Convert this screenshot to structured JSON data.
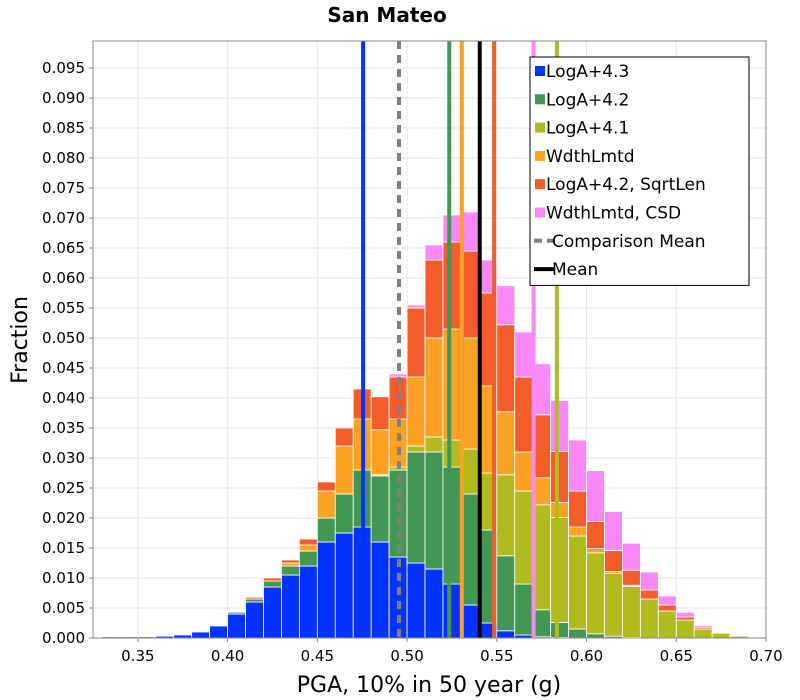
{
  "chart_data": {
    "type": "bar",
    "stacked": true,
    "title": "San Mateo",
    "xlabel": "PGA, 10% in 50 year (g)",
    "ylabel": "Fraction",
    "xlim": [
      0.325,
      0.7
    ],
    "ylim": [
      0.0,
      0.0995
    ],
    "xticks": [
      "0.35",
      "0.40",
      "0.45",
      "0.50",
      "0.55",
      "0.60",
      "0.65",
      "0.70"
    ],
    "yticks": [
      "0.000",
      "0.005",
      "0.010",
      "0.015",
      "0.020",
      "0.025",
      "0.030",
      "0.035",
      "0.040",
      "0.045",
      "0.050",
      "0.055",
      "0.060",
      "0.065",
      "0.070",
      "0.075",
      "0.080",
      "0.085",
      "0.090",
      "0.095"
    ],
    "grid": true,
    "legend_position": "top-right",
    "bin_width": 0.01,
    "bin_centers": [
      0.335,
      0.345,
      0.355,
      0.365,
      0.375,
      0.385,
      0.395,
      0.405,
      0.415,
      0.425,
      0.435,
      0.445,
      0.455,
      0.465,
      0.475,
      0.485,
      0.495,
      0.505,
      0.515,
      0.525,
      0.535,
      0.545,
      0.555,
      0.565,
      0.575,
      0.585,
      0.595,
      0.605,
      0.615,
      0.625,
      0.635,
      0.645,
      0.655,
      0.665,
      0.675,
      0.685
    ],
    "series": [
      {
        "name": "LogA+4.3",
        "color": "#0433ff",
        "values": [
          0.0002,
          0.0002,
          0.0002,
          0.0003,
          0.0005,
          0.001,
          0.002,
          0.004,
          0.006,
          0.0085,
          0.0105,
          0.012,
          0.016,
          0.0175,
          0.0185,
          0.016,
          0.0135,
          0.0125,
          0.0115,
          0.009,
          0.0055,
          0.0025,
          0.0012,
          0.0005,
          0.0002,
          0.0001,
          0.0,
          0.0,
          0.0,
          0.0,
          0.0,
          0.0,
          0.0,
          0.0,
          0.0,
          0.0
        ]
      },
      {
        "name": "LogA+4.2",
        "color": "#429852",
        "values": [
          0.0,
          0.0,
          0.0,
          0.0,
          0.0,
          0.0,
          0.0,
          0.0003,
          0.0005,
          0.001,
          0.0015,
          0.0025,
          0.004,
          0.0065,
          0.0095,
          0.011,
          0.0145,
          0.0185,
          0.0195,
          0.0195,
          0.0185,
          0.0155,
          0.0125,
          0.0085,
          0.0045,
          0.0025,
          0.0015,
          0.0007,
          0.0003,
          0.0001,
          0.0,
          0.0,
          0.0,
          0.0,
          0.0,
          0.0
        ]
      },
      {
        "name": "LogA+4.1",
        "color": "#b2bb1e",
        "values": [
          0.0,
          0.0,
          0.0,
          0.0,
          0.0,
          0.0,
          0.0,
          0.0,
          0.0,
          0.0,
          0.0,
          0.0,
          0.0,
          0.0,
          0.0,
          0.0002,
          0.0005,
          0.001,
          0.0025,
          0.0045,
          0.0075,
          0.0095,
          0.0135,
          0.0155,
          0.0175,
          0.0175,
          0.0155,
          0.0135,
          0.0105,
          0.0085,
          0.0065,
          0.0045,
          0.003,
          0.0015,
          0.0008,
          0.0003
        ]
      },
      {
        "name": "WdthLmtd",
        "color": "#fba222",
        "values": [
          0.0,
          0.0,
          0.0,
          0.0,
          0.0,
          0.0,
          0.0,
          0.0,
          0.0,
          0.0,
          0.0005,
          0.001,
          0.0045,
          0.008,
          0.0085,
          0.0075,
          0.008,
          0.0115,
          0.0165,
          0.0185,
          0.0185,
          0.0145,
          0.0105,
          0.0065,
          0.0045,
          0.0025,
          0.0015,
          0.0007,
          0.0003,
          0.0002,
          0.0,
          0.0,
          0.0,
          0.0,
          0.0,
          0.0
        ]
      },
      {
        "name": "LogA+4.2, SqrtLen",
        "color": "#f45c29",
        "values": [
          0.0,
          0.0,
          0.0,
          0.0,
          0.0,
          0.0,
          0.0,
          0.0,
          0.0003,
          0.0005,
          0.0005,
          0.001,
          0.0015,
          0.003,
          0.005,
          0.0055,
          0.007,
          0.0115,
          0.013,
          0.0145,
          0.0145,
          0.0155,
          0.0145,
          0.0125,
          0.0105,
          0.0085,
          0.006,
          0.0045,
          0.0035,
          0.0025,
          0.0015,
          0.001,
          0.0005,
          0.0003,
          0.0001,
          0.0
        ]
      },
      {
        "name": "WdthLmtd, CSD",
        "color": "#fb88f8",
        "values": [
          0.0,
          0.0,
          0.0,
          0.0,
          0.0,
          0.0,
          0.0,
          0.0,
          0.0,
          0.0,
          0.0,
          0.0,
          0.0,
          0.0,
          0.0,
          0.0,
          0.0005,
          0.0005,
          0.0025,
          0.0045,
          0.0065,
          0.0055,
          0.0065,
          0.0075,
          0.0085,
          0.0085,
          0.0085,
          0.0085,
          0.0065,
          0.0045,
          0.003,
          0.0015,
          0.0008,
          0.0003,
          0.0001,
          0.0
        ]
      }
    ],
    "vertical_lines": [
      {
        "name": "LogA+4.3",
        "x": 0.4755,
        "color": "#0433ff",
        "style": "solid"
      },
      {
        "name": "Comparison Mean",
        "x": 0.4955,
        "color": "#808080",
        "style": "dashed"
      },
      {
        "name": "LogA+4.2",
        "x": 0.5235,
        "color": "#429852",
        "style": "solid"
      },
      {
        "name": "LogA+4.1",
        "x": 0.5305,
        "color": "#fba222",
        "style": "solid"
      },
      {
        "name": "Mean",
        "x": 0.5405,
        "color": "#000000",
        "style": "solid"
      },
      {
        "name": "LogA+4.2, SqrtLen",
        "x": 0.5485,
        "color": "#f45c29",
        "style": "solid"
      },
      {
        "name": "WdthLmtd, CSD",
        "x": 0.5705,
        "color": "#fb88f8",
        "style": "solid"
      },
      {
        "name": "LogA+4.1",
        "x": 0.5835,
        "color": "#b2bb1e",
        "style": "solid"
      }
    ],
    "legend": [
      {
        "label": "LogA+4.3",
        "color": "#0433ff",
        "kind": "square"
      },
      {
        "label": "LogA+4.2",
        "color": "#429852",
        "kind": "square"
      },
      {
        "label": "LogA+4.1",
        "color": "#b2bb1e",
        "kind": "square"
      },
      {
        "label": "WdthLmtd",
        "color": "#fba222",
        "kind": "square"
      },
      {
        "label": "LogA+4.2, SqrtLen",
        "color": "#f45c29",
        "kind": "square"
      },
      {
        "label": "WdthLmtd, CSD",
        "color": "#fb88f8",
        "kind": "square"
      },
      {
        "label": "Comparison Mean",
        "color": "#808080",
        "kind": "dash"
      },
      {
        "label": "Mean",
        "color": "#000000",
        "kind": "line"
      }
    ]
  }
}
